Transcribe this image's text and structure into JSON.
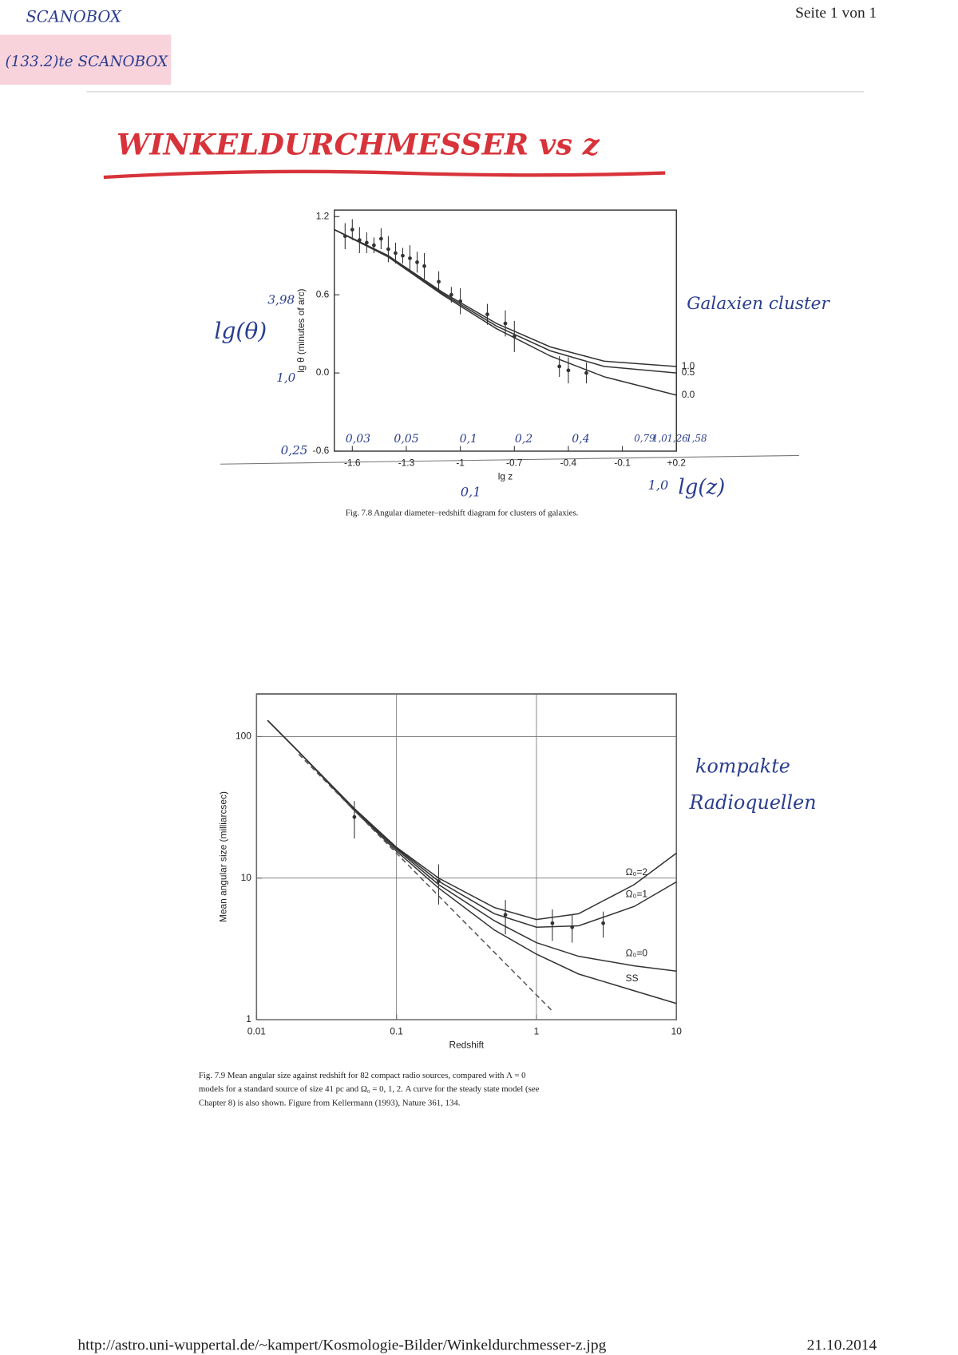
{
  "header": {
    "scan_mark": "SCANOBOX",
    "sticker": "(133.2)te SCANOBOX",
    "page": "Seite 1 von 1"
  },
  "title": "WINKELDURCHMESSER vs z",
  "annotations": {
    "fig1_ylabel": "lg(θ)",
    "fig1_note": "Galaxien cluster",
    "fig1_xlabel": "lg(z)",
    "fig1_y_values": [
      "3,98",
      "1,0",
      "0,25"
    ],
    "fig1_x_values": [
      "0,03",
      "0,05",
      "0,1",
      "0,2",
      "0,4",
      "0,79",
      "1,0",
      "1,26",
      "1,58"
    ],
    "fig1_x_below": [
      "0,1",
      "1,0"
    ],
    "fig2_note": [
      "kompakte",
      "Radioquellen"
    ]
  },
  "chart_data": [
    {
      "type": "line",
      "caption": "Fig. 7.8   Angular diameter–redshift diagram for clusters of galaxies.",
      "x_label": "lg z",
      "y_label": "lg θ (minutes of arc)",
      "xlim": [
        -1.7,
        0.2
      ],
      "ylim": [
        -0.6,
        1.25
      ],
      "xticks": [
        -1.6,
        -1.3,
        -1.0,
        -0.7,
        -0.4,
        -0.1,
        {
          "value": 0.2,
          "label": "+0.2"
        }
      ],
      "yticks": [
        -0.6,
        {
          "value": 0,
          "label": "0.0"
        },
        0.6,
        1.2
      ],
      "grid": false,
      "series": [
        {
          "name": "1.0",
          "color": "#333",
          "x": [
            -1.7,
            -1.4,
            -1.1,
            -0.8,
            -0.5,
            -0.2,
            0.2
          ],
          "values": [
            1.1,
            0.9,
            0.62,
            0.38,
            0.2,
            0.09,
            0.05
          ]
        },
        {
          "name": "0.5",
          "color": "#333",
          "x": [
            -1.7,
            -1.4,
            -1.1,
            -0.8,
            -0.5,
            -0.2,
            0.2
          ],
          "values": [
            1.1,
            0.9,
            0.61,
            0.36,
            0.17,
            0.05,
            0.0
          ]
        },
        {
          "name": "0.0",
          "color": "#333",
          "x": [
            -1.7,
            -1.4,
            -1.1,
            -0.8,
            -0.5,
            -0.2,
            0.2
          ],
          "values": [
            1.1,
            0.89,
            0.6,
            0.34,
            0.13,
            -0.03,
            -0.17
          ]
        },
        {
          "mode": "markers",
          "color": "#333",
          "x": [
            -1.64,
            -1.6,
            -1.56,
            -1.52,
            -1.48,
            -1.44,
            -1.4,
            -1.36,
            -1.32,
            -1.28,
            -1.24,
            -1.2,
            -1.12,
            -1.05,
            -1.0,
            -0.85,
            -0.75,
            -0.7,
            -0.45,
            -0.4,
            -0.3
          ],
          "values": [
            1.05,
            1.1,
            1.02,
            1.0,
            0.98,
            1.03,
            0.95,
            0.92,
            0.9,
            0.88,
            0.85,
            0.82,
            0.7,
            0.6,
            0.55,
            0.45,
            0.38,
            0.28,
            0.05,
            0.02,
            0.0
          ],
          "errors": [
            0.1,
            0.08,
            0.1,
            0.08,
            0.06,
            0.08,
            0.1,
            0.08,
            0.06,
            0.1,
            0.08,
            0.1,
            0.08,
            0.06,
            0.1,
            0.08,
            0.1,
            0.12,
            0.08,
            0.1,
            0.08
          ]
        }
      ]
    },
    {
      "type": "line",
      "caption": [
        "Fig. 7.9   Mean angular size against redshift for 82 compact radio sources, compared with Λ = 0",
        "models for a standard source of size 41 pc and Ω₀ = 0, 1, 2. A curve for the steady state model (see",
        "Chapter 8) is also shown. Figure from Kellermann (1993), Nature 361, 134."
      ],
      "x_label": "Redshift",
      "y_label": "Mean angular size (milliarcsec)",
      "xlog": true,
      "ylog": true,
      "xlim": [
        0.01,
        10
      ],
      "ylim": [
        1,
        200
      ],
      "xticks": [
        0.01,
        0.1,
        1,
        10
      ],
      "yticks": [
        1,
        10,
        100
      ],
      "grid": true,
      "series": [
        {
          "name": "Ω₀=2",
          "color": "#333",
          "x": [
            0.012,
            0.02,
            0.05,
            0.1,
            0.2,
            0.5,
            1,
            2,
            5,
            10
          ],
          "values": [
            130,
            78,
            31,
            16.5,
            10,
            6.2,
            5.1,
            5.6,
            9,
            15
          ]
        },
        {
          "name": "Ω₀=1",
          "color": "#333",
          "x": [
            0.012,
            0.02,
            0.05,
            0.1,
            0.2,
            0.5,
            1,
            2,
            5,
            10
          ],
          "values": [
            130,
            78,
            31,
            16.3,
            9.5,
            5.6,
            4.5,
            4.6,
            6.3,
            9.4
          ]
        },
        {
          "name": "Ω₀=0",
          "color": "#333",
          "x": [
            0.012,
            0.02,
            0.05,
            0.1,
            0.2,
            0.5,
            1,
            2,
            5,
            10
          ],
          "values": [
            130,
            78,
            30.5,
            16,
            9,
            5,
            3.5,
            2.8,
            2.4,
            2.2
          ]
        },
        {
          "name": "SS",
          "color": "#333",
          "x": [
            0.012,
            0.02,
            0.05,
            0.1,
            0.2,
            0.5,
            1,
            2,
            5,
            10
          ],
          "values": [
            130,
            78,
            30,
            15.5,
            8.5,
            4.3,
            2.9,
            2.1,
            1.6,
            1.3
          ]
        },
        {
          "dash": true,
          "color": "#555",
          "x": [
            0.02,
            1.3
          ],
          "values": [
            75,
            1.15
          ]
        },
        {
          "mode": "markers",
          "color": "#333",
          "x": [
            0.05,
            0.2,
            0.6,
            1.3,
            1.8,
            3
          ],
          "values": [
            27,
            9.5,
            5.5,
            4.8,
            4.5,
            4.8
          ],
          "errors": [
            8,
            3,
            1.5,
            1.2,
            1,
            1
          ]
        }
      ]
    }
  ],
  "footer": {
    "url": "http://astro.uni-wuppertal.de/~kampert/Kosmologie-Bilder/Winkeldurchmesser-z.jpg",
    "date": "21.10.2014"
  }
}
